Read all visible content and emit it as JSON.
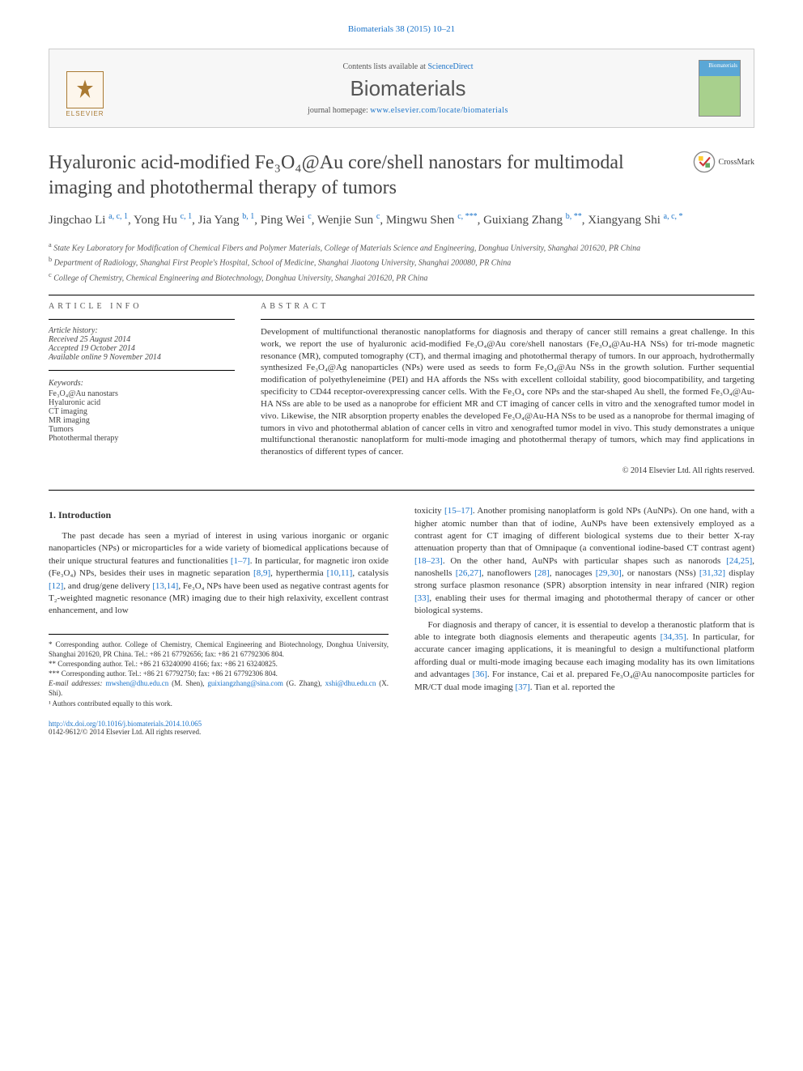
{
  "header": {
    "citation": "Biomaterials 38 (2015) 10–21",
    "contents_prefix": "Contents lists available at ",
    "contents_link": "ScienceDirect",
    "journal": "Biomaterials",
    "homepage_prefix": "journal homepage: ",
    "homepage_url": "www.elsevier.com/locate/biomaterials",
    "publisher": "ELSEVIER",
    "cover_label": "Biomaterials"
  },
  "crossmark": "CrossMark",
  "title": "Hyaluronic acid-modified Fe₃O₄@Au core/shell nanostars for multimodal imaging and photothermal therapy of tumors",
  "authors_html": "Jingchao Li <sup>a, c, 1</sup>, Yong Hu <sup>c, 1</sup>, Jia Yang <sup>b, 1</sup>, Ping Wei <sup>c</sup>, Wenjie Sun <sup>c</sup>, Mingwu Shen <sup>c, ***</sup>, Guixiang Zhang <sup>b, **</sup>, Xiangyang Shi <sup>a, c, *</sup>",
  "affiliations": [
    {
      "sup": "a",
      "text": "State Key Laboratory for Modification of Chemical Fibers and Polymer Materials, College of Materials Science and Engineering, Donghua University, Shanghai 201620, PR China"
    },
    {
      "sup": "b",
      "text": "Department of Radiology, Shanghai First People's Hospital, School of Medicine, Shanghai Jiaotong University, Shanghai 200080, PR China"
    },
    {
      "sup": "c",
      "text": "College of Chemistry, Chemical Engineering and Biotechnology, Donghua University, Shanghai 201620, PR China"
    }
  ],
  "article_info": {
    "heading": "ARTICLE INFO",
    "history_label": "Article history:",
    "received": "Received 25 August 2014",
    "accepted": "Accepted 19 October 2014",
    "available": "Available online 9 November 2014",
    "keywords_label": "Keywords:",
    "keywords": [
      "Fe₃O₄@Au nanostars",
      "Hyaluronic acid",
      "CT imaging",
      "MR imaging",
      "Tumors",
      "Photothermal therapy"
    ]
  },
  "abstract": {
    "heading": "ABSTRACT",
    "text": "Development of multifunctional theranostic nanoplatforms for diagnosis and therapy of cancer still remains a great challenge. In this work, we report the use of hyaluronic acid-modified Fe₃O₄@Au core/shell nanostars (Fe₃O₄@Au-HA NSs) for tri-mode magnetic resonance (MR), computed tomography (CT), and thermal imaging and photothermal therapy of tumors. In our approach, hydrothermally synthesized Fe₃O₄@Ag nanoparticles (NPs) were used as seeds to form Fe₃O₄@Au NSs in the growth solution. Further sequential modification of polyethyleneimine (PEI) and HA affords the NSs with excellent colloidal stability, good biocompatibility, and targeting specificity to CD44 receptor-overexpressing cancer cells. With the Fe₃O₄ core NPs and the star-shaped Au shell, the formed Fe₃O₄@Au-HA NSs are able to be used as a nanoprobe for efficient MR and CT imaging of cancer cells in vitro and the xenografted tumor model in vivo. Likewise, the NIR absorption property enables the developed Fe₃O₄@Au-HA NSs to be used as a nanoprobe for thermal imaging of tumors in vivo and photothermal ablation of cancer cells in vitro and xenografted tumor model in vivo. This study demonstrates a unique multifunctional theranostic nanoplatform for multi-mode imaging and photothermal therapy of tumors, which may find applications in theranostics of different types of cancer.",
    "copyright": "© 2014 Elsevier Ltd. All rights reserved."
  },
  "body": {
    "section_heading": "1. Introduction",
    "p1_pre": "The past decade has seen a myriad of interest in using various inorganic or organic nanoparticles (NPs) or microparticles for a wide variety of biomedical applications because of their unique structural features and functionalities ",
    "ref1": "[1–7]",
    "p1_mid1": ". In particular, for magnetic iron oxide (Fe₃O₄) NPs, besides their uses in magnetic separation ",
    "ref2": "[8,9]",
    "p1_mid2": ", hyperthermia ",
    "ref3": "[10,11]",
    "p1_mid3": ", catalysis ",
    "ref4": "[12]",
    "p1_mid4": ", and drug/gene delivery ",
    "ref5": "[13,14]",
    "p1_post": ", Fe₃O₄ NPs have been used as negative contrast agents for T₂-weighted magnetic resonance (MR) imaging due to their high relaxivity, excellent contrast enhancement, and low",
    "p2_pre": "toxicity ",
    "ref6": "[15–17]",
    "p2_mid1": ". Another promising nanoplatform is gold NPs (AuNPs). On one hand, with a higher atomic number than that of iodine, AuNPs have been extensively employed as a contrast agent for CT imaging of different biological systems due to their better X-ray attenuation property than that of Omnipaque (a conventional iodine-based CT contrast agent) ",
    "ref7": "[18–23]",
    "p2_mid2": ". On the other hand, AuNPs with particular shapes such as nanorods ",
    "ref8": "[24,25]",
    "p2_mid3": ", nanoshells ",
    "ref9": "[26,27]",
    "p2_mid4": ", nanoflowers ",
    "ref10": "[28]",
    "p2_mid5": ", nanocages ",
    "ref11": "[29,30]",
    "p2_mid6": ", or nanostars (NSs) ",
    "ref12": "[31,32]",
    "p2_mid7": " display strong surface plasmon resonance (SPR) absorption intensity in near infrared (NIR) region ",
    "ref13": "[33]",
    "p2_post": ", enabling their uses for thermal imaging and photothermal therapy of cancer or other biological systems.",
    "p3_pre": "For diagnosis and therapy of cancer, it is essential to develop a theranostic platform that is able to integrate both diagnosis elements and therapeutic agents ",
    "ref14": "[34,35]",
    "p3_mid1": ". In particular, for accurate cancer imaging applications, it is meaningful to design a multifunctional platform affording dual or multi-mode imaging because each imaging modality has its own limitations and advantages ",
    "ref15": "[36]",
    "p3_mid2": ". For instance, Cai et al. prepared Fe₃O₄@Au nanocomposite particles for MR/CT dual mode imaging ",
    "ref16": "[37]",
    "p3_post": ". Tian et al. reported the"
  },
  "footnotes": {
    "f1": "* Corresponding author. College of Chemistry, Chemical Engineering and Biotechnology, Donghua University, Shanghai 201620, PR China. Tel.: +86 21 67792656; fax: +86 21 67792306 804.",
    "f2": "** Corresponding author. Tel.: +86 21 63240090 4166; fax: +86 21 63240825.",
    "f3": "*** Corresponding author. Tel.: +86 21 67792750; fax: +86 21 67792306 804.",
    "emails_label": "E-mail addresses: ",
    "email1": "mwshen@dhu.edu.cn",
    "email1_who": " (M. Shen), ",
    "email2": "guixiangzhang@sina.com",
    "email2_who": " (G. Zhang), ",
    "email3": "xshi@dhu.edu.cn",
    "email3_who": " (X. Shi).",
    "equal": "¹ Authors contributed equally to this work."
  },
  "doi": {
    "url": "http://dx.doi.org/10.1016/j.biomaterials.2014.10.065",
    "issn": "0142-9612/© 2014 Elsevier Ltd. All rights reserved."
  }
}
